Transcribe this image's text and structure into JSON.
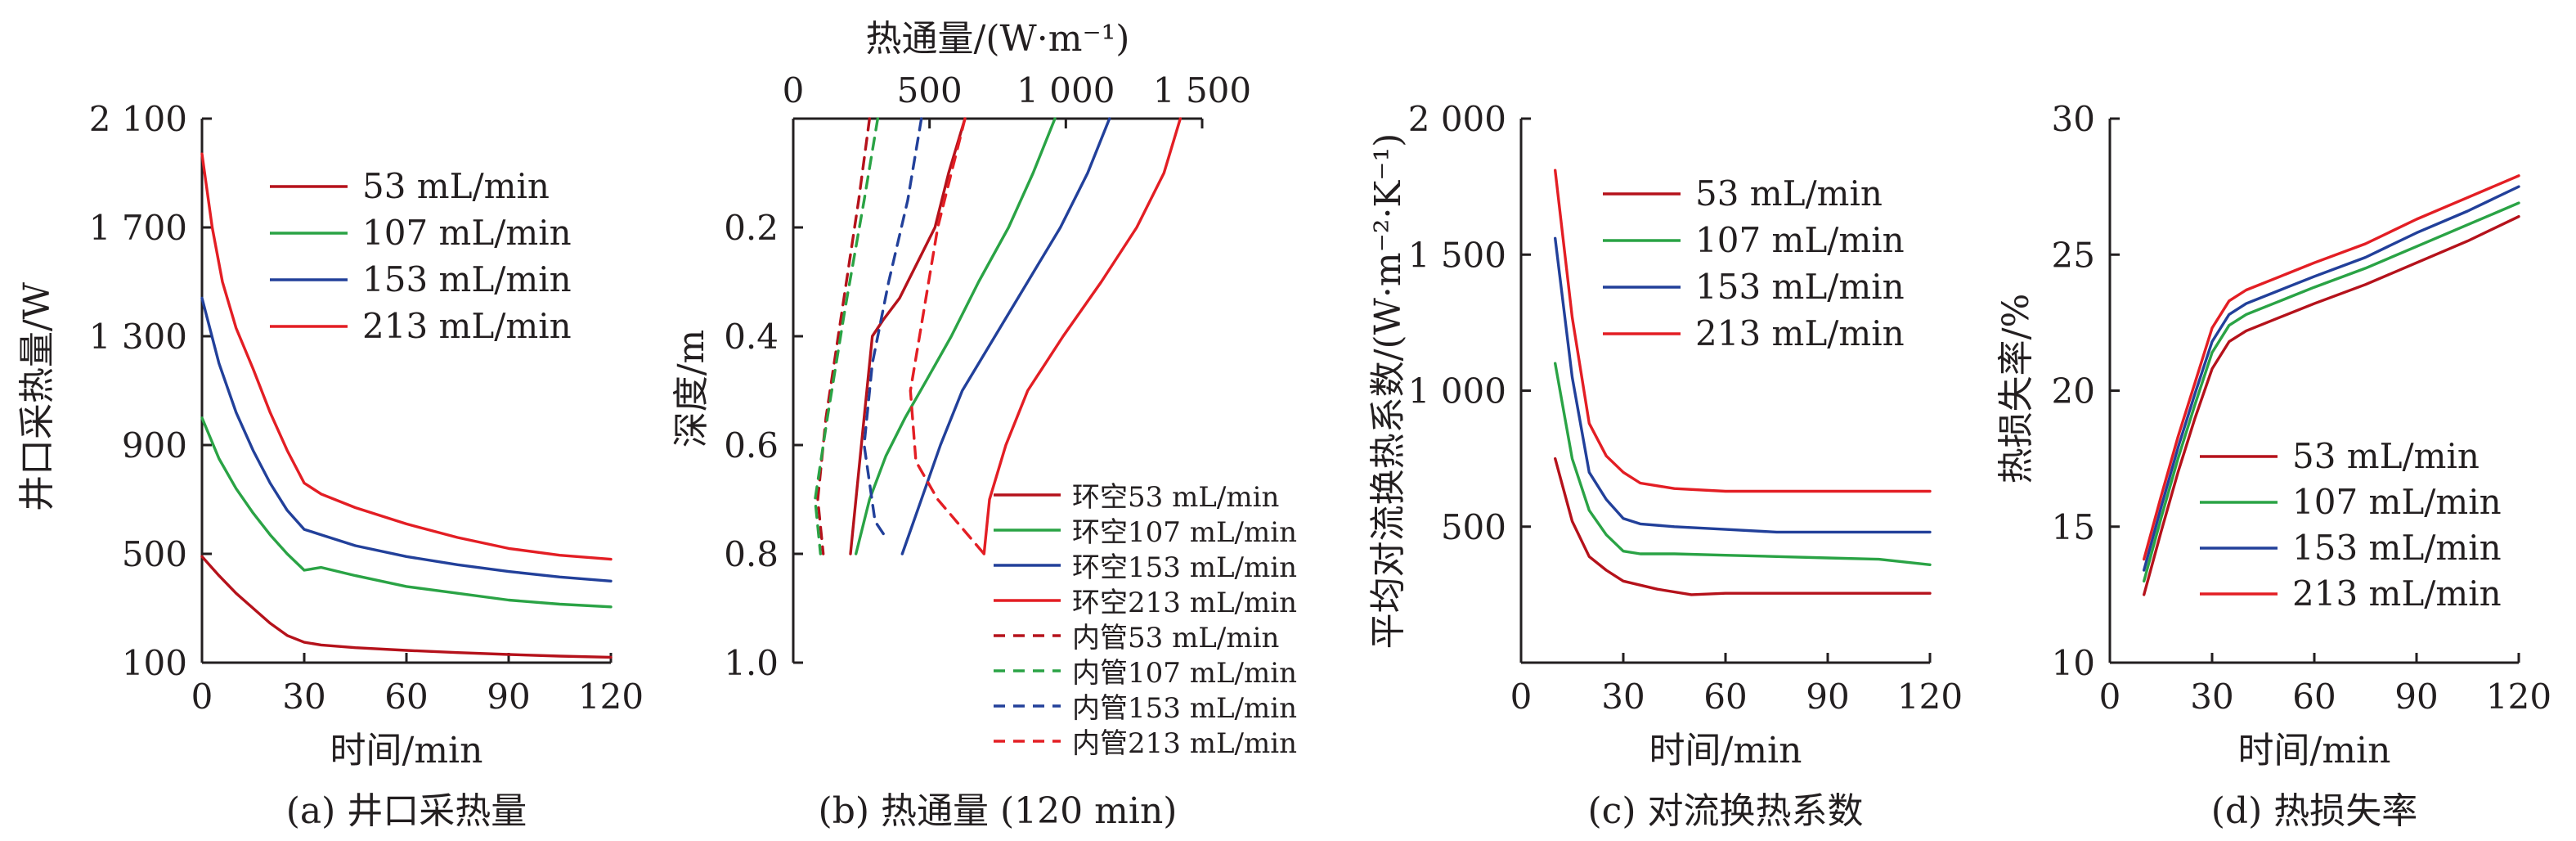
{
  "colors": {
    "53 mL/min": "#b5121b",
    "107 mL/min": "#2aa345",
    "153 mL/min": "#22409a",
    "213 mL/min": "#e31e24"
  },
  "chart_data": [
    {
      "type": "line",
      "panel": "a",
      "caption": "(a) 井口采热量",
      "xlabel": "时间/min",
      "ylabel": "井口采热量/W",
      "xlim": [
        0,
        120
      ],
      "ylim": [
        100,
        2100
      ],
      "xticks": [
        0,
        30,
        60,
        90,
        120
      ],
      "xtick_labels": [
        "0",
        "30",
        "60",
        "90",
        "120"
      ],
      "yticks": [
        100,
        500,
        900,
        1300,
        1700,
        2100
      ],
      "ytick_labels": [
        "100",
        "500",
        "900",
        "1 300",
        "1 700",
        "2 100"
      ],
      "legend_position": "top-right",
      "series": [
        {
          "name": "53 mL/min",
          "color": "#b5121b",
          "x": [
            0,
            5,
            10,
            15,
            20,
            25,
            30,
            35,
            45,
            60,
            75,
            90,
            105,
            120
          ],
          "y": [
            490,
            420,
            355,
            300,
            245,
            200,
            175,
            165,
            155,
            145,
            137,
            130,
            124,
            120
          ]
        },
        {
          "name": "107 mL/min",
          "color": "#2aa345",
          "x": [
            0,
            5,
            10,
            15,
            20,
            25,
            30,
            35,
            45,
            60,
            75,
            90,
            105,
            120
          ],
          "y": [
            1000,
            850,
            740,
            650,
            570,
            500,
            440,
            450,
            420,
            380,
            355,
            330,
            315,
            305
          ]
        },
        {
          "name": "153 mL/min",
          "color": "#22409a",
          "x": [
            0,
            5,
            10,
            15,
            20,
            25,
            30,
            35,
            45,
            60,
            75,
            90,
            105,
            120
          ],
          "y": [
            1440,
            1200,
            1020,
            880,
            760,
            660,
            590,
            570,
            530,
            490,
            460,
            435,
            415,
            400
          ]
        },
        {
          "name": "213 mL/min",
          "color": "#e31e24",
          "x": [
            0,
            3,
            6,
            10,
            15,
            20,
            25,
            30,
            35,
            45,
            60,
            75,
            90,
            105,
            120
          ],
          "y": [
            1970,
            1700,
            1500,
            1330,
            1180,
            1020,
            880,
            760,
            720,
            670,
            610,
            560,
            520,
            495,
            480
          ]
        }
      ]
    },
    {
      "type": "line",
      "panel": "b",
      "caption": "(b) 热通量 (120 min)",
      "xlabel": "热通量/(W·m⁻¹)",
      "ylabel": "深度/m",
      "xlim": [
        0,
        1500
      ],
      "ylim": [
        0,
        1.0
      ],
      "y_inverted": true,
      "x_axis_position": "top",
      "xticks": [
        0,
        500,
        1000,
        1500
      ],
      "xtick_labels": [
        "0",
        "500",
        "1 000",
        "1 500"
      ],
      "yticks": [
        0.2,
        0.4,
        0.6,
        0.8,
        1.0
      ],
      "ytick_labels": [
        "0.2",
        "0.4",
        "0.6",
        "0.8",
        "1.0"
      ],
      "legend_position": "bottom-right",
      "series": [
        {
          "name": "环空53 mL/min",
          "color": "#b5121b",
          "style": "solid",
          "x": [
            630,
            570,
            520,
            470,
            420,
            390,
            330,
            290,
            250,
            210
          ],
          "y": [
            0,
            0.1,
            0.2,
            0.25,
            0.3,
            0.33,
            0.37,
            0.4,
            0.6,
            0.8
          ]
        },
        {
          "name": "环空107 mL/min",
          "color": "#2aa345",
          "style": "solid",
          "x": [
            960,
            880,
            790,
            680,
            580,
            490,
            410,
            340,
            280,
            230
          ],
          "y": [
            0,
            0.1,
            0.2,
            0.3,
            0.4,
            0.48,
            0.55,
            0.62,
            0.7,
            0.8
          ]
        },
        {
          "name": "环空153 mL/min",
          "color": "#22409a",
          "style": "solid",
          "x": [
            1160,
            1080,
            980,
            860,
            740,
            620,
            540,
            470,
            400
          ],
          "y": [
            0,
            0.1,
            0.2,
            0.3,
            0.4,
            0.5,
            0.6,
            0.7,
            0.8
          ]
        },
        {
          "name": "环空213 mL/min",
          "color": "#e31e24",
          "style": "solid",
          "x": [
            1420,
            1360,
            1260,
            1130,
            990,
            860,
            780,
            720,
            700
          ],
          "y": [
            0,
            0.1,
            0.2,
            0.3,
            0.4,
            0.5,
            0.6,
            0.7,
            0.8
          ]
        },
        {
          "name": "内管53 mL/min",
          "color": "#b5121b",
          "style": "dashed",
          "x": [
            280,
            240,
            180,
            120,
            90,
            110
          ],
          "y": [
            0,
            0.15,
            0.35,
            0.55,
            0.7,
            0.8
          ]
        },
        {
          "name": "内管107 mL/min",
          "color": "#2aa345",
          "style": "dashed",
          "x": [
            310,
            260,
            190,
            125,
            80,
            100
          ],
          "y": [
            0,
            0.15,
            0.35,
            0.55,
            0.7,
            0.8
          ]
        },
        {
          "name": "内管153 mL/min",
          "color": "#22409a",
          "style": "dashed",
          "x": [
            470,
            420,
            350,
            290,
            260,
            300,
            340
          ],
          "y": [
            0,
            0.15,
            0.3,
            0.45,
            0.6,
            0.74,
            0.77
          ]
        },
        {
          "name": "内管213 mL/min",
          "color": "#e31e24",
          "style": "dashed",
          "x": [
            630,
            580,
            530,
            480,
            430,
            450,
            530,
            700
          ],
          "y": [
            0,
            0.1,
            0.2,
            0.35,
            0.5,
            0.63,
            0.7,
            0.8
          ]
        }
      ]
    },
    {
      "type": "line",
      "panel": "c",
      "caption": "(c) 对流换热系数",
      "xlabel": "时间/min",
      "ylabel": "平均对流换热系数/(W·m⁻²·K⁻¹)",
      "xlim": [
        0,
        120
      ],
      "ylim": [
        0,
        2000
      ],
      "xticks": [
        0,
        30,
        60,
        90,
        120
      ],
      "xtick_labels": [
        "0",
        "30",
        "60",
        "90",
        "120"
      ],
      "yticks": [
        500,
        1000,
        1500,
        2000
      ],
      "ytick_labels": [
        "500",
        "1 000",
        "1 500",
        "2 000"
      ],
      "legend_position": "top-right",
      "series": [
        {
          "name": "53 mL/min",
          "color": "#b5121b",
          "x": [
            10,
            15,
            20,
            25,
            30,
            40,
            50,
            60,
            75,
            90,
            105,
            120
          ],
          "y": [
            750,
            520,
            390,
            340,
            300,
            270,
            250,
            255,
            255,
            255,
            255,
            255
          ]
        },
        {
          "name": "107 mL/min",
          "color": "#2aa345",
          "x": [
            10,
            15,
            20,
            25,
            30,
            35,
            45,
            60,
            75,
            90,
            105,
            120
          ],
          "y": [
            1100,
            750,
            560,
            470,
            410,
            400,
            400,
            395,
            390,
            385,
            380,
            360
          ]
        },
        {
          "name": "153 mL/min",
          "color": "#22409a",
          "x": [
            10,
            15,
            20,
            25,
            30,
            35,
            45,
            60,
            75,
            90,
            105,
            120
          ],
          "y": [
            1560,
            1050,
            700,
            600,
            530,
            510,
            500,
            490,
            480,
            480,
            480,
            480
          ]
        },
        {
          "name": "213 mL/min",
          "color": "#e31e24",
          "x": [
            10,
            15,
            20,
            25,
            30,
            35,
            45,
            60,
            75,
            90,
            105,
            120
          ],
          "y": [
            1810,
            1270,
            880,
            760,
            700,
            660,
            640,
            630,
            630,
            630,
            630,
            630
          ]
        }
      ]
    },
    {
      "type": "line",
      "panel": "d",
      "caption": "(d) 热损失率",
      "xlabel": "时间/min",
      "ylabel": "热损失率/%",
      "xlim": [
        0,
        120
      ],
      "ylim": [
        10,
        30
      ],
      "xticks": [
        0,
        30,
        60,
        90,
        120
      ],
      "xtick_labels": [
        "0",
        "30",
        "60",
        "90",
        "120"
      ],
      "yticks": [
        10,
        15,
        20,
        25,
        30
      ],
      "ytick_labels": [
        "10",
        "15",
        "20",
        "25",
        "30"
      ],
      "legend_position": "bottom-right",
      "series": [
        {
          "name": "53 mL/min",
          "color": "#b5121b",
          "x": [
            10,
            15,
            20,
            25,
            30,
            35,
            40,
            50,
            60,
            75,
            90,
            105,
            120
          ],
          "y": [
            12.5,
            14.8,
            17.0,
            19.0,
            20.8,
            21.8,
            22.2,
            22.7,
            23.2,
            23.9,
            24.7,
            25.5,
            26.4
          ]
        },
        {
          "name": "107 mL/min",
          "color": "#2aa345",
          "x": [
            10,
            15,
            20,
            25,
            30,
            35,
            40,
            50,
            60,
            75,
            90,
            105,
            120
          ],
          "y": [
            13.0,
            15.3,
            17.5,
            19.5,
            21.4,
            22.4,
            22.8,
            23.3,
            23.8,
            24.5,
            25.3,
            26.1,
            26.9
          ]
        },
        {
          "name": "153 mL/min",
          "color": "#22409a",
          "x": [
            10,
            15,
            20,
            25,
            30,
            35,
            40,
            50,
            60,
            75,
            90,
            105,
            120
          ],
          "y": [
            13.4,
            15.7,
            17.9,
            19.9,
            21.8,
            22.8,
            23.2,
            23.7,
            24.2,
            24.9,
            25.8,
            26.6,
            27.5
          ]
        },
        {
          "name": "213 mL/min",
          "color": "#e31e24",
          "x": [
            10,
            15,
            20,
            25,
            30,
            35,
            40,
            50,
            60,
            75,
            90,
            105,
            120
          ],
          "y": [
            13.8,
            16.1,
            18.3,
            20.3,
            22.3,
            23.3,
            23.7,
            24.2,
            24.7,
            25.4,
            26.3,
            27.1,
            27.9
          ]
        }
      ]
    }
  ]
}
